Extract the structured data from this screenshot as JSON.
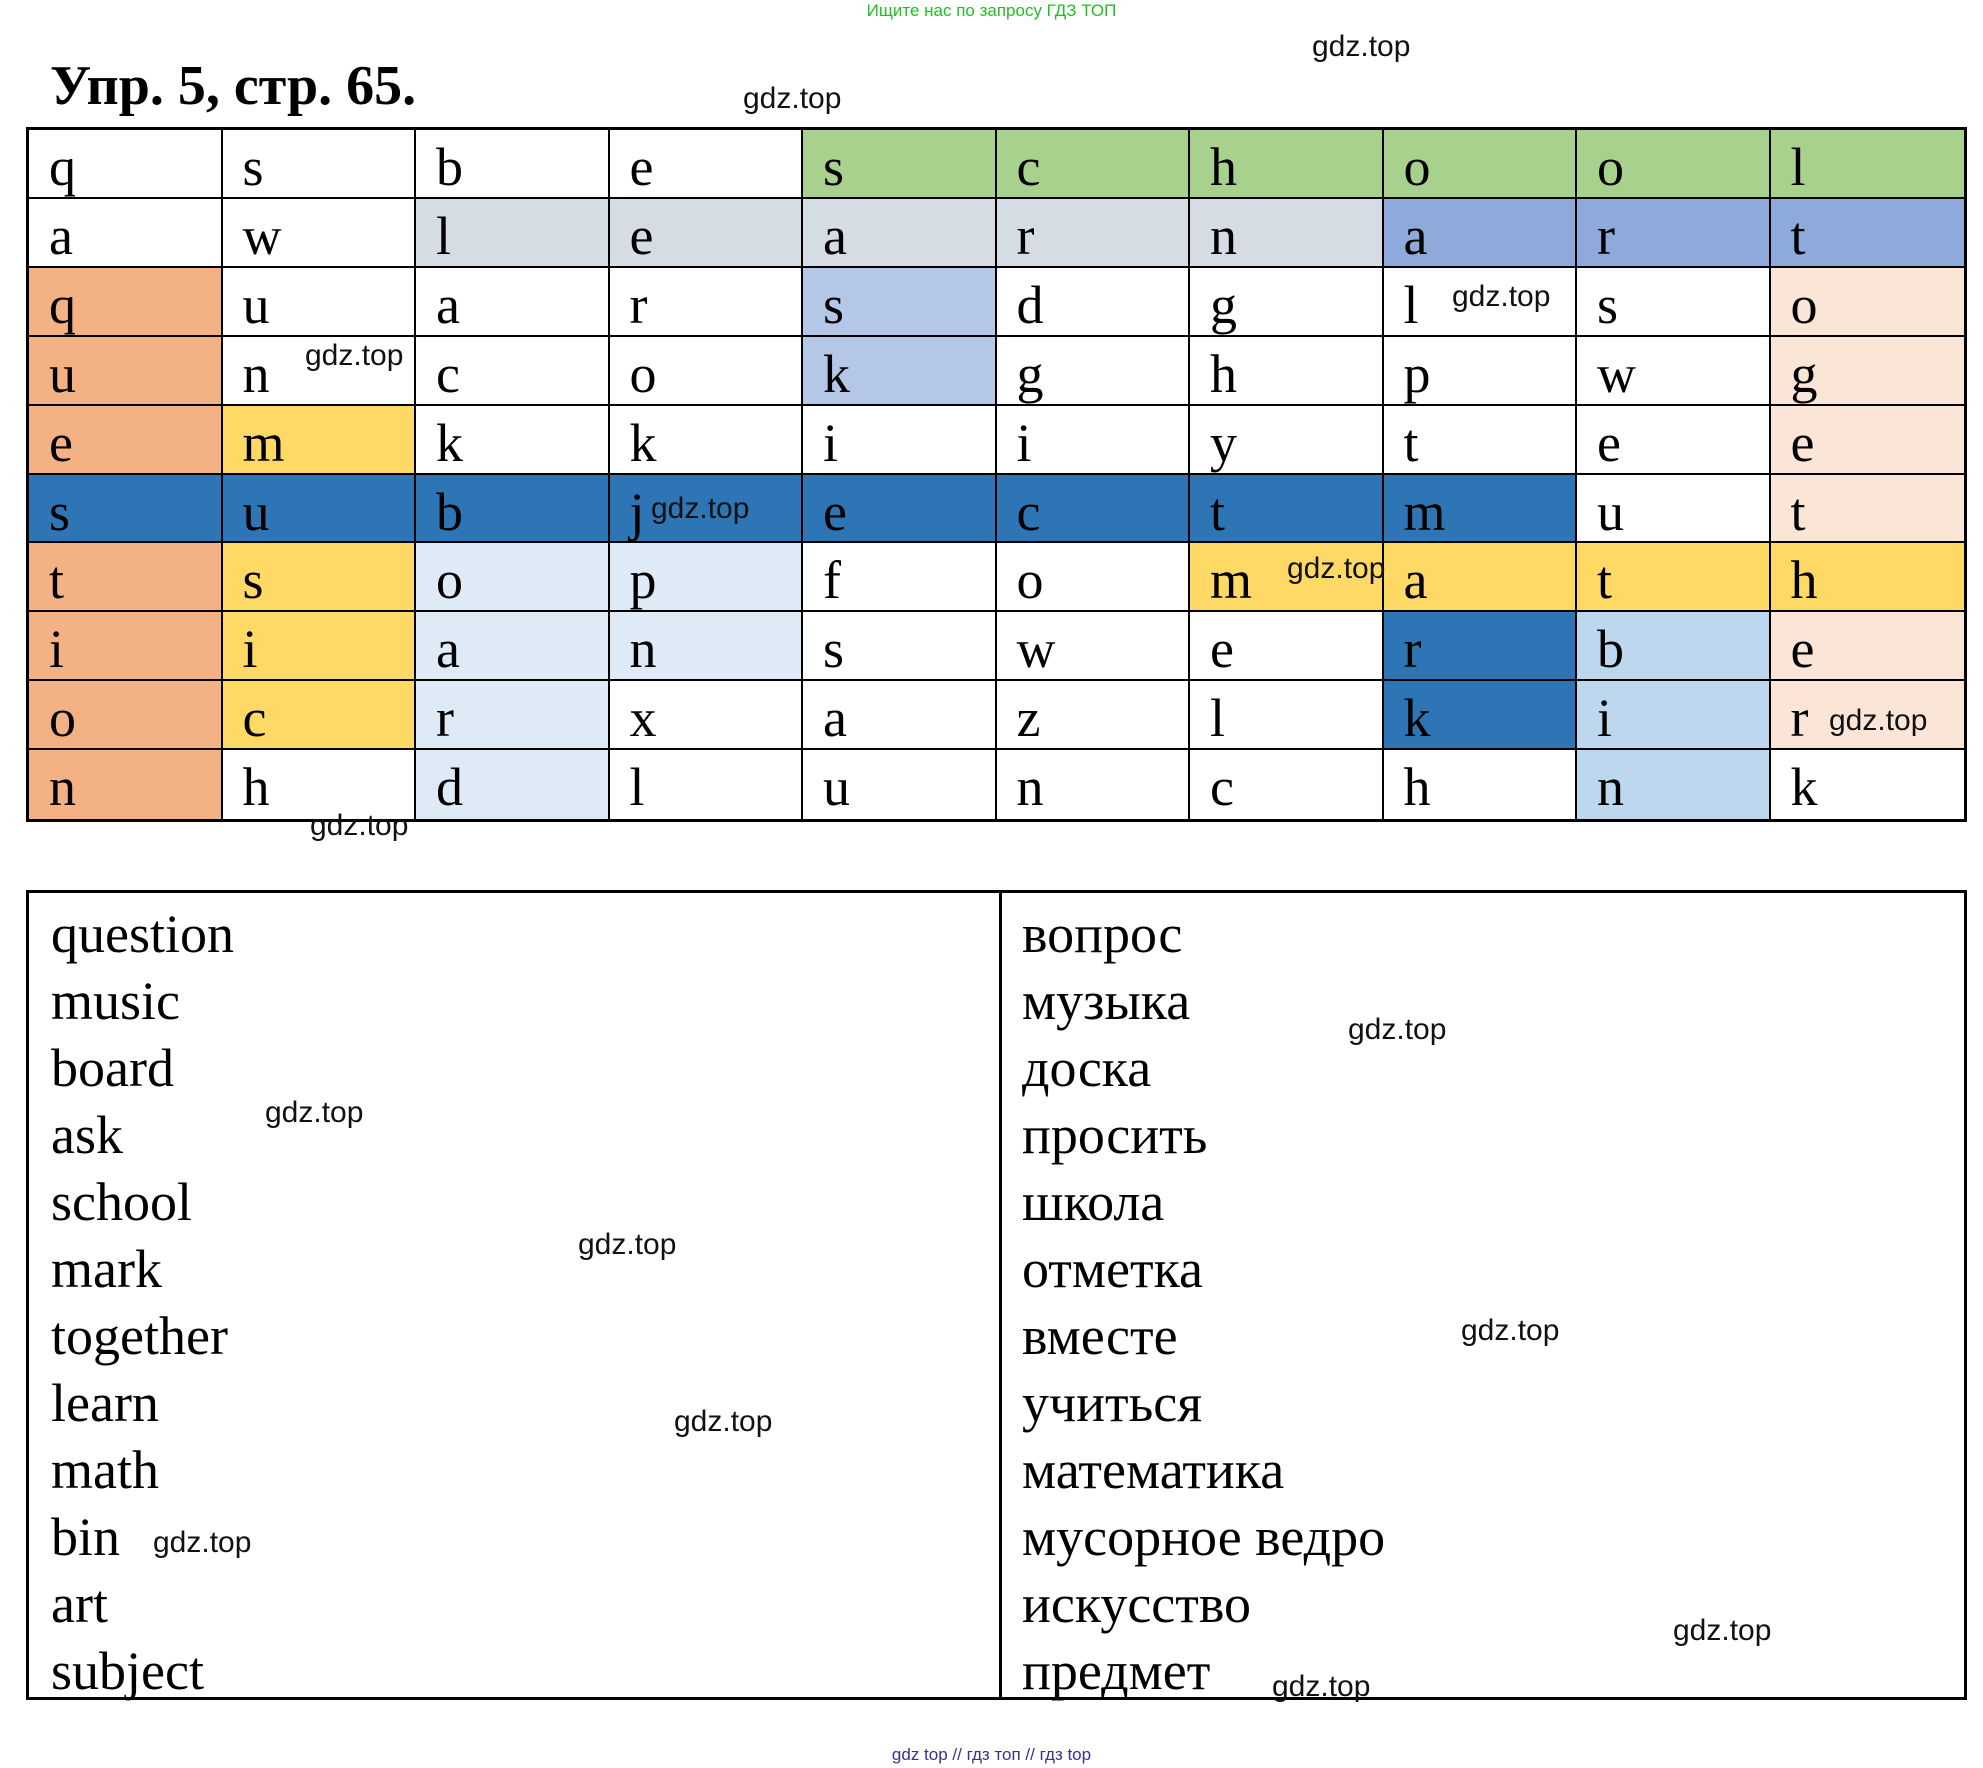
{
  "header": {
    "note": "Ищите нас по запросу ГДЗ ТОП"
  },
  "title": "Упр. 5, стр. 65.",
  "grid": {
    "rows": [
      [
        "q",
        "s",
        "b",
        "e",
        "s",
        "c",
        "h",
        "o",
        "o",
        "l"
      ],
      [
        "a",
        "w",
        "l",
        "e",
        "a",
        "r",
        "n",
        "a",
        "r",
        "t"
      ],
      [
        "q",
        "u",
        "a",
        "r",
        "s",
        "d",
        "g",
        "l",
        "s",
        "o"
      ],
      [
        "u",
        "n",
        "c",
        "o",
        "k",
        "g",
        "h",
        "p",
        "w",
        "g"
      ],
      [
        "e",
        "m",
        "k",
        "k",
        "i",
        "i",
        "y",
        "t",
        "e",
        "e"
      ],
      [
        "s",
        "u",
        "b",
        "j",
        "e",
        "c",
        "t",
        "m",
        "u",
        "t"
      ],
      [
        "t",
        "s",
        "o",
        "p",
        "f",
        "o",
        "m",
        "a",
        "t",
        "h"
      ],
      [
        "i",
        "i",
        "a",
        "n",
        "s",
        "w",
        "e",
        "r",
        "b",
        "e"
      ],
      [
        "o",
        "c",
        "r",
        "x",
        "a",
        "z",
        "l",
        "k",
        "i",
        "r"
      ],
      [
        "n",
        "h",
        "d",
        "l",
        "u",
        "n",
        "c",
        "h",
        "n",
        "k"
      ]
    ],
    "fills": [
      [
        null,
        null,
        null,
        null,
        "#a9d18e",
        "#a9d18e",
        "#a9d18e",
        "#a9d18e",
        "#a9d18e",
        "#a9d18e"
      ],
      [
        null,
        null,
        "#d6dce4",
        "#d6dce4",
        "#d6dce4",
        "#d6dce4",
        "#d6dce4",
        "#8eaadb",
        "#8eaadb",
        "#8eaadb"
      ],
      [
        "#f4b183",
        null,
        null,
        null,
        "#b4c7e7",
        null,
        null,
        null,
        null,
        "#fbe5d6"
      ],
      [
        "#f4b183",
        null,
        null,
        null,
        "#b4c7e7",
        null,
        null,
        null,
        null,
        "#fbe5d6"
      ],
      [
        "#f4b183",
        "#ffd966",
        null,
        null,
        null,
        null,
        null,
        null,
        null,
        "#fbe5d6"
      ],
      [
        "#2e75b6",
        "#2e75b6",
        "#2e75b6",
        "#2e75b6",
        "#2e75b6",
        "#2e75b6",
        "#2e75b6",
        "#2e75b6",
        null,
        "#fbe5d6"
      ],
      [
        "#f4b183",
        "#ffd966",
        "#deebf7",
        "#deebf7",
        null,
        null,
        "#ffd966",
        "#ffd966",
        "#ffd966",
        "#ffd966"
      ],
      [
        "#f4b183",
        "#ffd966",
        "#deebf7",
        "#deebf7",
        null,
        null,
        null,
        "#2e75b6",
        "#bdd7ee",
        "#fbe5d6"
      ],
      [
        "#f4b183",
        "#ffd966",
        "#deebf7",
        null,
        null,
        null,
        null,
        "#2e75b6",
        "#bdd7ee",
        "#fbe5d6"
      ],
      [
        "#f4b183",
        null,
        "#deebf7",
        null,
        null,
        null,
        null,
        null,
        "#bdd7ee",
        null
      ]
    ]
  },
  "english_words": [
    "question",
    "music",
    "board",
    "ask",
    "school",
    "mark",
    "together",
    "learn",
    "math",
    "bin",
    "art",
    "subject"
  ],
  "russian_words": [
    "вопрос",
    "музыка",
    "доска",
    "просить",
    "школа",
    "отметка",
    "вместе",
    "учиться",
    "математика",
    "мусорное ведро",
    "искусство",
    "предмет"
  ],
  "watermark": "gdz.top",
  "footer": "gdz top  //  гдз топ  //  гдз top"
}
